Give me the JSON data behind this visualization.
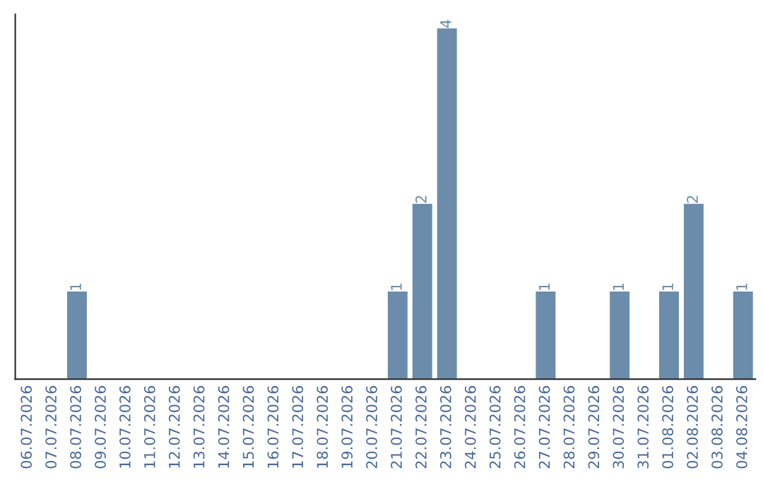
{
  "chart_data": {
    "type": "bar",
    "categories": [
      "06.07.2026",
      "07.07.2026",
      "08.07.2026",
      "09.07.2026",
      "10.07.2026",
      "11.07.2026",
      "12.07.2026",
      "13.07.2026",
      "14.07.2026",
      "15.07.2026",
      "16.07.2026",
      "17.07.2026",
      "18.07.2026",
      "19.07.2026",
      "20.07.2026",
      "21.07.2026",
      "22.07.2026",
      "23.07.2026",
      "24.07.2026",
      "25.07.2026",
      "26.07.2026",
      "27.07.2026",
      "28.07.2026",
      "29.07.2026",
      "30.07.2026",
      "31.07.2026",
      "01.08.2026",
      "02.08.2026",
      "03.08.2026",
      "04.08.2026"
    ],
    "values": [
      0,
      0,
      1,
      0,
      0,
      0,
      0,
      0,
      0,
      0,
      0,
      0,
      0,
      0,
      0,
      1,
      2,
      4,
      0,
      0,
      0,
      1,
      0,
      0,
      1,
      0,
      1,
      2,
      0,
      1
    ],
    "value_labels": [
      null,
      null,
      "1",
      null,
      null,
      null,
      null,
      null,
      null,
      null,
      null,
      null,
      null,
      null,
      null,
      "1",
      "2",
      "4",
      null,
      null,
      null,
      "1",
      null,
      null,
      "1",
      null,
      "1",
      "2",
      null,
      "1"
    ],
    "color": "#6b8cab",
    "grid": false,
    "legend": false,
    "tick_labels": "x"
  }
}
